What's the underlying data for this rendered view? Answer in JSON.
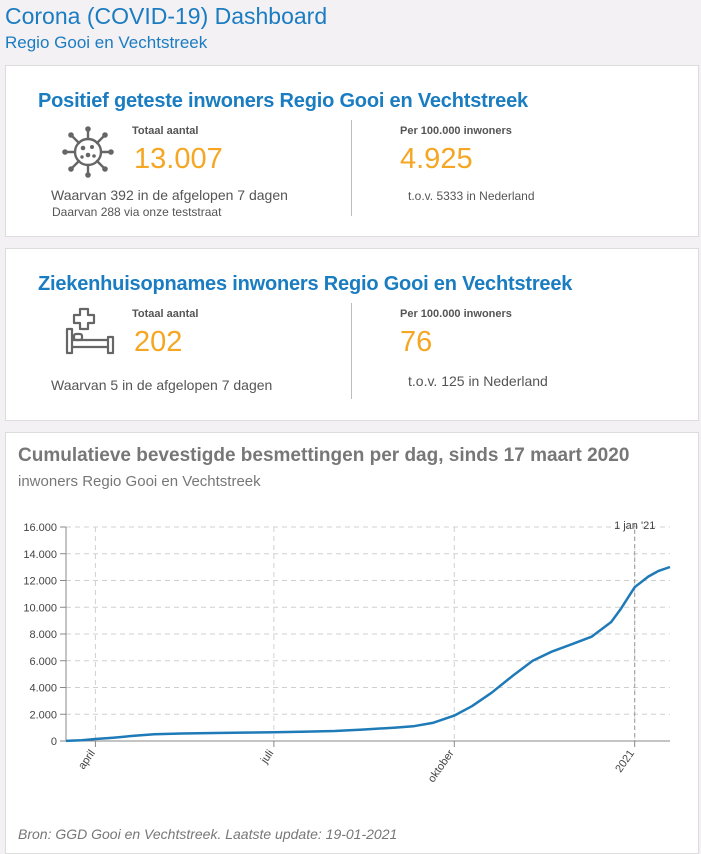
{
  "header": {
    "title": "Corona (COVID-19) Dashboard",
    "subtitle": "Regio Gooi en Vechtstreek"
  },
  "positive": {
    "title": "Positief geteste inwoners Regio Gooi en Vechtstreek",
    "icon": "virus-icon",
    "total_label": "Totaal aantal",
    "total_value": "13.007",
    "total_note": "Waarvan 392 in de afgelopen 7 dagen",
    "total_note2": "Daarvan 288 via onze teststraat",
    "per100k_label": "Per 100.000 inwoners",
    "per100k_value": "4.925",
    "per100k_note": "t.o.v. 5333 in Nederland"
  },
  "hospital": {
    "title": "Ziekenhuisopnames inwoners Regio Gooi en Vechtstreek",
    "icon": "hospital-bed-icon",
    "total_label": "Totaal aantal",
    "total_value": "202",
    "total_note": "Waarvan 5 in de afgelopen 7 dagen",
    "per100k_label": "Per 100.000 inwoners",
    "per100k_value": "76",
    "per100k_note": "t.o.v. 125 in Nederland"
  },
  "chart_section": {
    "title": "Cumulatieve bevestigde besmettingen per dag, sinds 17 maart 2020",
    "subtitle": "inwoners Regio Gooi en Vechtstreek",
    "source": "Bron: GGD Gooi en Vechtstreek. Laatste update: 19-01-2021"
  },
  "colors": {
    "brand": "#1a7cc1",
    "accent": "#f5a623",
    "line": "#1f7ab8"
  },
  "chart_data": {
    "type": "line",
    "x_type": "date",
    "xlim": [
      "2020-03-17",
      "2021-01-19"
    ],
    "ylim": [
      0,
      16000
    ],
    "yticks": [
      0,
      2000,
      4000,
      6000,
      8000,
      10000,
      12000,
      14000,
      16000
    ],
    "ytick_labels": [
      "0",
      "2.000",
      "4.000",
      "6.000",
      "8.000",
      "10.000",
      "12.000",
      "14.000",
      "16.000"
    ],
    "xticks": [
      "2020-04-01",
      "2020-07-01",
      "2020-10-01",
      "2021-01-01"
    ],
    "xtick_labels": [
      "april",
      "juli",
      "oktober",
      "2021"
    ],
    "grid": true,
    "annotation": {
      "x": "2021-01-01",
      "label": "1 jan '21"
    },
    "series": [
      {
        "x": [
          "2020-03-17",
          "2020-03-25",
          "2020-04-01",
          "2020-04-10",
          "2020-04-20",
          "2020-05-01",
          "2020-05-15",
          "2020-06-01",
          "2020-06-15",
          "2020-07-01",
          "2020-07-15",
          "2020-08-01",
          "2020-08-15",
          "2020-09-01",
          "2020-09-10",
          "2020-09-20",
          "2020-10-01",
          "2020-10-10",
          "2020-10-20",
          "2020-10-31",
          "2020-11-10",
          "2020-11-20",
          "2020-12-01",
          "2020-12-10",
          "2020-12-20",
          "2020-12-25",
          "2021-01-01",
          "2021-01-08",
          "2021-01-13",
          "2021-01-19"
        ],
        "values": [
          10,
          50,
          150,
          250,
          380,
          500,
          560,
          600,
          630,
          650,
          690,
          750,
          850,
          1000,
          1100,
          1350,
          1900,
          2600,
          3600,
          4900,
          6000,
          6700,
          7300,
          7800,
          8900,
          9900,
          11500,
          12300,
          12700,
          13007
        ]
      }
    ]
  }
}
